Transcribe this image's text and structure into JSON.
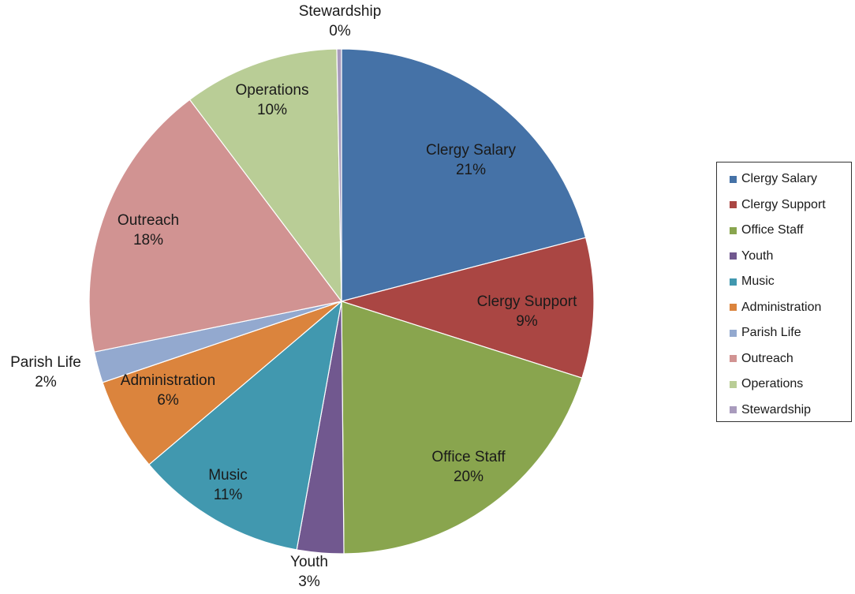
{
  "chart_data": {
    "type": "pie",
    "title": "",
    "slices": [
      {
        "label": "Clergy Salary",
        "value": 21,
        "display": "21%",
        "color": "#4572A7"
      },
      {
        "label": "Clergy Support",
        "value": 9,
        "display": "9%",
        "color": "#AA4643"
      },
      {
        "label": "Office Staff",
        "value": 20,
        "display": "20%",
        "color": "#89A54E"
      },
      {
        "label": "Youth",
        "value": 3,
        "display": "3%",
        "color": "#71588F"
      },
      {
        "label": "Music",
        "value": 11,
        "display": "11%",
        "color": "#4198AF"
      },
      {
        "label": "Administration",
        "value": 6,
        "display": "6%",
        "color": "#DB843D"
      },
      {
        "label": "Parish Life",
        "value": 2,
        "display": "2%",
        "color": "#93A9CF"
      },
      {
        "label": "Outreach",
        "value": 18,
        "display": "18%",
        "color": "#D19392"
      },
      {
        "label": "Operations",
        "value": 10,
        "display": "10%",
        "color": "#B9CD96"
      },
      {
        "label": "Stewardship",
        "value": 0.3,
        "display": "0%",
        "color": "#A99BBD"
      }
    ],
    "legend": {
      "position": "right"
    }
  }
}
